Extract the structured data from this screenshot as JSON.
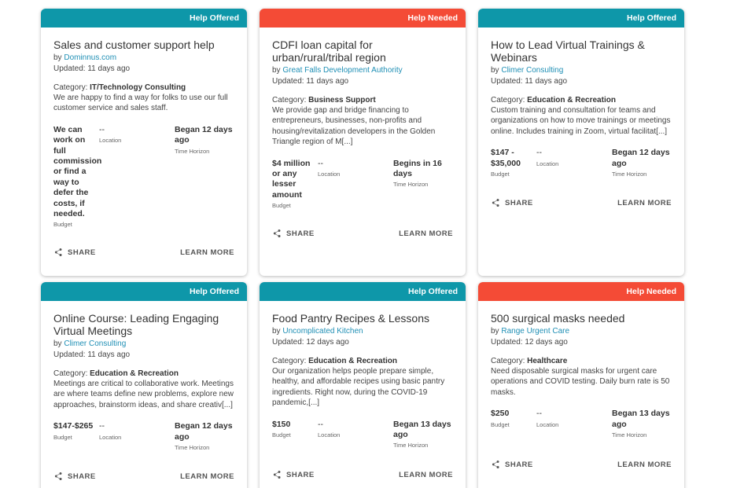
{
  "colors": {
    "offered": "#0e97a9",
    "needed": "#f44b36",
    "link": "#1f8fb5"
  },
  "labels": {
    "by": "by",
    "category": "Category:",
    "location": "Location",
    "budget": "Budget",
    "time_horizon": "Time Horizon",
    "share": "SHARE",
    "learn_more": "LEARN MORE"
  },
  "cards": [
    {
      "banner": "Help Offered",
      "title": "Sales and customer support help",
      "org": "Dominnus.com",
      "updated": "Updated: 11 days ago",
      "category": "IT/Technology Consulting",
      "description": "We are happy to find a way for folks to use our full customer service and sales staff.",
      "budget": "We can work on full commission or find a way to defer the costs, if needed.",
      "location": "--",
      "time": "Began 12 days ago"
    },
    {
      "banner": "Help Needed",
      "title": "CDFI loan capital for urban/rural/tribal region",
      "org": "Great Falls Development Authority",
      "updated": "Updated: 11 days ago",
      "category": "Business Support",
      "description": "We provide gap and bridge financing to entrepreneurs, businesses, non-profits and housing/revitalization developers in the Golden Triangle region of M[...]",
      "budget": "$4 million or any lesser amount",
      "location": "--",
      "time": "Begins in 16 days"
    },
    {
      "banner": "Help Offered",
      "title": "How to Lead Virtual Trainings & Webinars",
      "org": "Climer Consulting",
      "updated": "Updated: 11 days ago",
      "category": "Education & Recreation",
      "description": "Custom training and consultation for teams and organizations on how to move trainings or meetings online. Includes training in Zoom, virtual facilitat[...]",
      "budget": "$147 - $35,000",
      "location": "--",
      "time": "Began 12 days ago"
    },
    {
      "banner": "Help Offered",
      "title": "Online Course: Leading Engaging Virtual Meetings",
      "org": "Climer Consulting",
      "updated": "Updated: 11 days ago",
      "category": "Education & Recreation",
      "description": "Meetings are critical to collaborative work. Meetings are where teams define new problems, explore new approaches, brainstorm ideas, and share creativ[...]",
      "budget": "$147-$265",
      "location": "--",
      "time": "Began 12 days ago"
    },
    {
      "banner": "Help Offered",
      "title": "Food Pantry Recipes & Lessons",
      "org": "Uncomplicated Kitchen",
      "updated": "Updated: 12 days ago",
      "category": "Education & Recreation",
      "description": "Our organization helps people prepare simple, healthy, and affordable recipes using basic pantry ingredients. Right now, during the COVID-19 pandemic,[...]",
      "budget": "$150",
      "location": "--",
      "time": "Began 13 days ago"
    },
    {
      "banner": "Help Needed",
      "title": "500 surgical masks needed",
      "org": "Range Urgent Care",
      "updated": "Updated: 12 days ago",
      "category": "Healthcare",
      "description": "Need disposable surgical masks for urgent care operations and COVID testing. Daily burn rate is 50 masks.",
      "budget": "$250",
      "location": "--",
      "time": "Began 13 days ago"
    }
  ]
}
